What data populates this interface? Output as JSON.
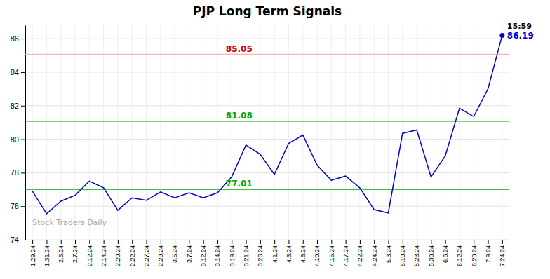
{
  "chart_data": {
    "type": "line",
    "title": "PJP Long Term Signals",
    "watermark": "Stock Traders Daily",
    "categories": [
      "1.29.24",
      "1.31.24",
      "2.5.24",
      "2.7.24",
      "2.12.24",
      "2.14.24",
      "2.20.24",
      "2.22.24",
      "2.27.24",
      "2.29.24",
      "3.5.24",
      "3.7.24",
      "3.12.24",
      "3.14.24",
      "3.19.24",
      "3.21.24",
      "3.26.24",
      "4.1.24",
      "4.3.24",
      "4.8.24",
      "4.10.24",
      "4.15.24",
      "4.17.24",
      "4.22.24",
      "4.24.24",
      "5.3.24",
      "5.10.24",
      "5.23.24",
      "5.30.24",
      "6.6.24",
      "6.12.24",
      "6.20.24",
      "7.9.24",
      "7.24.24"
    ],
    "values": [
      76.9,
      75.55,
      76.3,
      76.65,
      77.5,
      77.1,
      75.75,
      76.5,
      76.35,
      76.85,
      76.5,
      76.8,
      76.5,
      76.8,
      77.75,
      79.65,
      79.1,
      77.9,
      79.75,
      80.25,
      78.45,
      77.55,
      77.8,
      77.1,
      75.8,
      75.6,
      80.35,
      80.55,
      77.75,
      79.0,
      81.85,
      81.35,
      83.0,
      86.19
    ],
    "color": "#0000cc",
    "last_point_label": "15:59",
    "reference_lines": [
      {
        "value": 85.05,
        "color": "#ffb3b3",
        "label_color": "#cc0000"
      },
      {
        "value": 81.08,
        "color": "#00aa00",
        "label_color": "#00aa00"
      },
      {
        "value": 77.01,
        "color": "#00aa00",
        "label_color": "#00aa00"
      }
    ],
    "ylim": [
      74,
      86.8
    ],
    "yticks": [
      74,
      76,
      78,
      80,
      82,
      84,
      86
    ],
    "grid": true
  }
}
